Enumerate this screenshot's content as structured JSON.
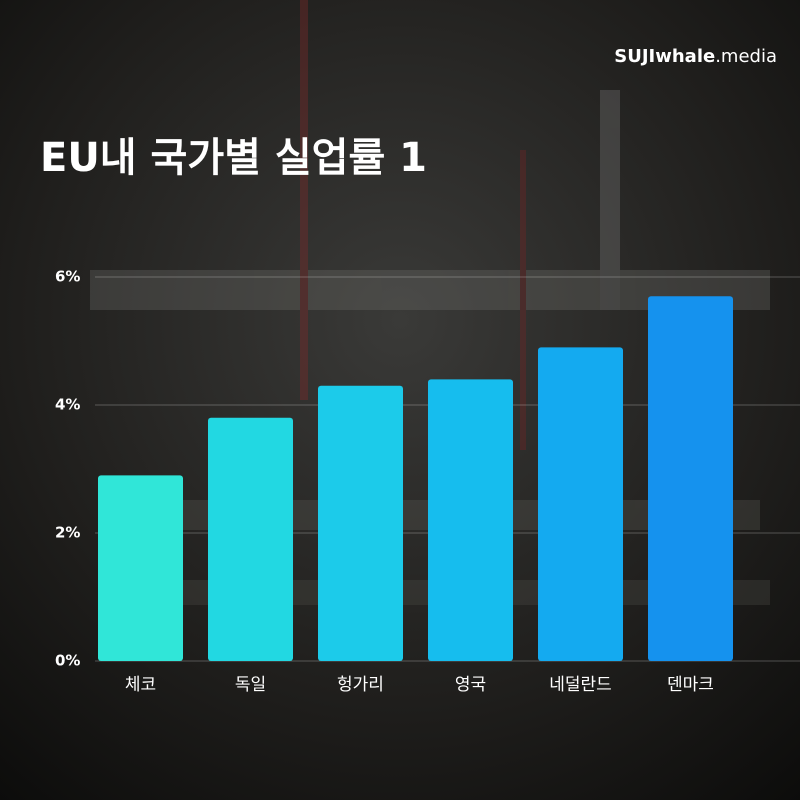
{
  "chart_data": {
    "type": "bar",
    "title": "EU내 국가별 실업률 1",
    "brand": [
      "SUJIwhale",
      ".media"
    ],
    "categories": [
      "체코",
      "독일",
      "헝가리",
      "영국",
      "네덜란드",
      "덴마크"
    ],
    "values": [
      2.9,
      3.8,
      4.3,
      4.4,
      4.9,
      5.7
    ],
    "colors": [
      "#30e6d8",
      "#22d8e2",
      "#1ccbea",
      "#16bdee",
      "#14aaf0",
      "#1592ee"
    ],
    "ylim": [
      0,
      6
    ],
    "yticks": [
      {
        "value": 0,
        "label": "0%"
      },
      {
        "value": 2,
        "label": "2%"
      },
      {
        "value": 4,
        "label": "4%"
      },
      {
        "value": 6,
        "label": "6%"
      }
    ],
    "grid": true
  }
}
